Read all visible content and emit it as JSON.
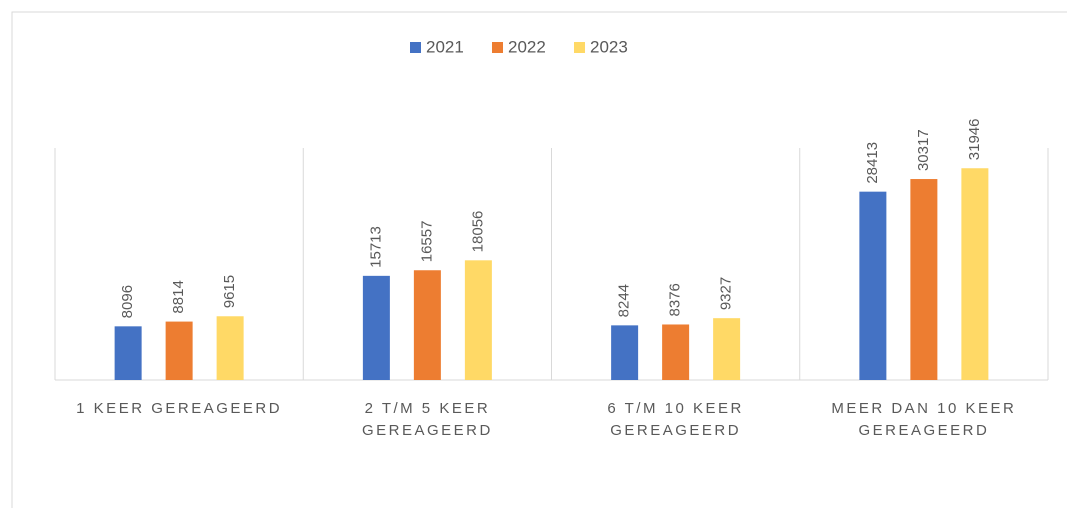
{
  "chart_data": {
    "type": "bar",
    "categories": [
      "1 KEER GEREAGEERD",
      "2 T/M 5 KEER GEREAGEERD",
      "6 T/M 10 KEER GEREAGEERD",
      "MEER DAN 10 KEER GEREAGEERD"
    ],
    "series": [
      {
        "name": "2021",
        "color": "#4472c4",
        "values": [
          8096,
          15713,
          8244,
          28413
        ]
      },
      {
        "name": "2022",
        "color": "#ed7d31",
        "values": [
          8814,
          16557,
          8376,
          30317
        ]
      },
      {
        "name": "2023",
        "color": "#ffd966",
        "values": [
          9615,
          18056,
          9327,
          31946
        ]
      }
    ],
    "ylim": [
      0,
      35000
    ],
    "legend": "top"
  }
}
